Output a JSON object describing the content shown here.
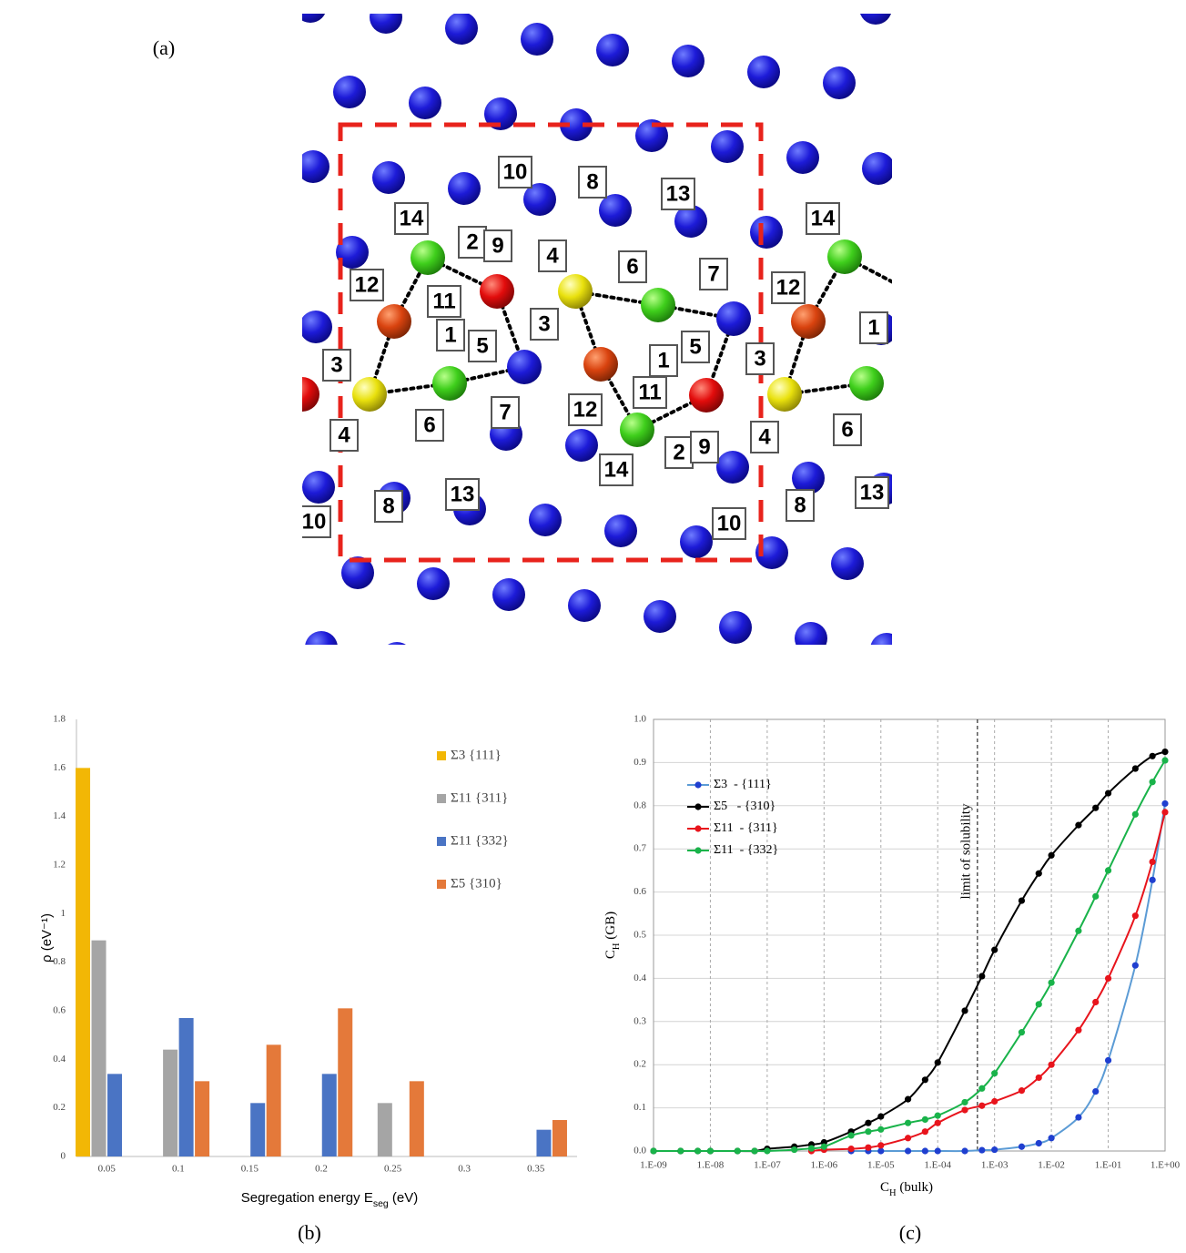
{
  "panel_labels": [
    "(a)",
    "(b)",
    "(c)"
  ],
  "panel_a": {
    "labels": [
      "10",
      "8",
      "13",
      "14",
      "2",
      "9",
      "4",
      "6",
      "7",
      "14",
      "12",
      "11",
      "12",
      "3",
      "1",
      "5",
      "5",
      "1",
      "3",
      "3",
      "1",
      "11",
      "12",
      "7",
      "6",
      "4",
      "4",
      "6",
      "2",
      "9",
      "14",
      "13",
      "8",
      "13",
      "10",
      "10",
      "8"
    ]
  },
  "chart_data": [
    {
      "type": "bar",
      "ylabel": "ρ (eV⁻¹)",
      "xlabel": {
        "text": "Segregation energy E",
        "sub": "seg",
        "unit": " (eV)"
      },
      "categories": [
        "0.05",
        "0.1",
        "0.15",
        "0.2",
        "0.25",
        "0.3",
        "0.35"
      ],
      "series": [
        {
          "name": "Σ3 {111}",
          "color": "#f2b705",
          "values": [
            1.6,
            null,
            null,
            null,
            null,
            null,
            null
          ]
        },
        {
          "name": "Σ11 {311}",
          "color": "#a5a5a5",
          "values": [
            0.89,
            0.44,
            null,
            null,
            0.22,
            null,
            null
          ]
        },
        {
          "name": "Σ11 {332}",
          "color": "#4a74c4",
          "values": [
            0.34,
            0.57,
            0.22,
            0.34,
            null,
            null,
            0.11
          ]
        },
        {
          "name": "Σ5 {310}",
          "color": "#e4793a",
          "values": [
            null,
            0.31,
            0.46,
            0.61,
            0.31,
            null,
            0.15
          ]
        }
      ],
      "ylim": [
        0,
        1.8
      ],
      "yticks": [
        0,
        0.2,
        0.4,
        0.6,
        0.8,
        1,
        1.2,
        1.4,
        1.6,
        1.8
      ],
      "grid": false,
      "legend": "right"
    },
    {
      "type": "line",
      "xscale": "log",
      "xlabel": {
        "text": "C",
        "sub": "H",
        "unit": " (bulk)"
      },
      "ylabel": {
        "text": "C",
        "sub": "H",
        "unit": " (GB)"
      },
      "xlim": [
        1e-09,
        1
      ],
      "xticks": [
        {
          "value": 1e-09,
          "label": "1.E-09"
        },
        {
          "value": 1e-08,
          "label": "1.E-08"
        },
        {
          "value": 1e-07,
          "label": "1.E-07"
        },
        {
          "value": 1e-06,
          "label": "1.E-06"
        },
        {
          "value": 1e-05,
          "label": "1.E-05"
        },
        {
          "value": 0.0001,
          "label": "1.E-04"
        },
        {
          "value": 0.001,
          "label": "1.E-03"
        },
        {
          "value": 0.01,
          "label": "1.E-02"
        },
        {
          "value": 0.1,
          "label": "1.E-01"
        },
        {
          "value": 1,
          "label": "1.E+00"
        }
      ],
      "ylim": [
        0,
        1
      ],
      "yticks": [
        {
          "value": 0,
          "label": "0.0"
        },
        0.1,
        0.2,
        0.3,
        0.4,
        0.5,
        0.6,
        0.7,
        0.8,
        0.9,
        {
          "value": 1,
          "label": "1.0"
        }
      ],
      "grid": true,
      "legend": "upper left",
      "annotation": {
        "x": 0.0005,
        "label": "limit of solubility"
      },
      "series": [
        {
          "name": "Σ3  - {111}",
          "color": "#1f3fd0",
          "line_color": "#5b9bd5",
          "x": [
            3e-06,
            6e-06,
            1e-05,
            3e-05,
            6e-05,
            0.0001,
            0.0003,
            0.0006,
            0.001,
            0.003,
            0.006,
            0.01,
            0.03,
            0.06,
            0.1,
            0.3,
            0.6,
            1
          ],
          "values": [
            0,
            0,
            0,
            0,
            0,
            0,
            0,
            0.002,
            0.003,
            0.01,
            0.018,
            0.03,
            0.078,
            0.138,
            0.21,
            0.43,
            0.628,
            0.805
          ]
        },
        {
          "name": "Σ5   - {310}",
          "color": "#000000",
          "line_color": "#000000",
          "x": [
            1e-09,
            3e-09,
            6e-09,
            1e-08,
            3e-08,
            6e-08,
            1e-07,
            3e-07,
            6e-07,
            1e-06,
            3e-06,
            6e-06,
            1e-05,
            3e-05,
            6e-05,
            0.0001,
            0.0003,
            0.0006,
            0.001,
            0.003,
            0.006,
            0.01,
            0.03,
            0.06,
            0.1,
            0.3,
            0.6,
            1
          ],
          "values": [
            0,
            0,
            0,
            0,
            0,
            0,
            0.005,
            0.01,
            0.015,
            0.02,
            0.045,
            0.065,
            0.08,
            0.12,
            0.165,
            0.205,
            0.325,
            0.405,
            0.466,
            0.58,
            0.643,
            0.685,
            0.755,
            0.795,
            0.829,
            0.886,
            0.915,
            0.925
          ]
        },
        {
          "name": "Σ11  - {311}",
          "color": "#e8141c",
          "line_color": "#e8141c",
          "x": [
            6e-07,
            1e-06,
            3e-06,
            6e-06,
            1e-05,
            3e-05,
            6e-05,
            0.0001,
            0.0003,
            0.0006,
            0.001,
            0.003,
            0.006,
            0.01,
            0.03,
            0.06,
            0.1,
            0.3,
            0.6,
            1
          ],
          "values": [
            0,
            0.003,
            0.005,
            0.008,
            0.013,
            0.03,
            0.045,
            0.065,
            0.095,
            0.105,
            0.115,
            0.14,
            0.17,
            0.2,
            0.28,
            0.345,
            0.4,
            0.545,
            0.67,
            0.785
          ]
        },
        {
          "name": "Σ11  - {332}",
          "color": "#19b34a",
          "line_color": "#19b34a",
          "x": [
            1e-09,
            3e-09,
            6e-09,
            1e-08,
            3e-08,
            6e-08,
            1e-07,
            3e-07,
            6e-07,
            1e-06,
            3e-06,
            6e-06,
            1e-05,
            3e-05,
            6e-05,
            0.0001,
            0.0003,
            0.0006,
            0.001,
            0.003,
            0.006,
            0.01,
            0.03,
            0.06,
            0.1,
            0.3,
            0.6,
            1
          ],
          "values": [
            0,
            0,
            0,
            0,
            0,
            0,
            0,
            0.003,
            0.006,
            0.01,
            0.036,
            0.045,
            0.05,
            0.065,
            0.073,
            0.082,
            0.113,
            0.145,
            0.18,
            0.275,
            0.34,
            0.39,
            0.51,
            0.59,
            0.65,
            0.78,
            0.855,
            0.905
          ]
        }
      ]
    }
  ]
}
